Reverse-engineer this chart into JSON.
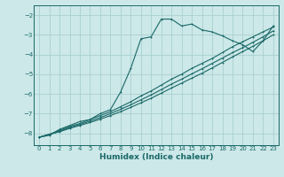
{
  "xlabel": "Humidex (Indice chaleur)",
  "bg_color": "#cce8e8",
  "grid_color": "#aad0d0",
  "line_color": "#1a6868",
  "xlim": [
    -0.5,
    23.5
  ],
  "ylim": [
    -8.6,
    -1.5
  ],
  "yticks": [
    -8,
    -7,
    -6,
    -5,
    -4,
    -3,
    -2
  ],
  "xticks": [
    0,
    1,
    2,
    3,
    4,
    5,
    6,
    7,
    8,
    9,
    10,
    11,
    12,
    13,
    14,
    15,
    16,
    17,
    18,
    19,
    20,
    21,
    22,
    23
  ],
  "series_jagged_x": [
    0,
    1,
    2,
    3,
    4,
    5,
    6,
    7,
    8,
    9,
    10,
    11,
    12,
    13,
    14,
    15,
    16,
    17,
    18,
    19,
    20,
    21,
    22,
    23
  ],
  "series_jagged_y": [
    -8.2,
    -8.1,
    -7.8,
    -7.6,
    -7.4,
    -7.3,
    -7.0,
    -6.8,
    -5.9,
    -4.7,
    -3.2,
    -3.1,
    -2.2,
    -2.2,
    -2.55,
    -2.45,
    -2.75,
    -2.85,
    -3.05,
    -3.3,
    -3.5,
    -3.85,
    -3.3,
    -2.55
  ],
  "series_lin1_x": [
    0,
    1,
    2,
    3,
    4,
    5,
    6,
    7,
    8,
    9,
    10,
    11,
    12,
    13,
    14,
    15,
    16,
    17,
    18,
    19,
    20,
    21,
    22,
    23
  ],
  "series_lin1_y": [
    -8.2,
    -8.05,
    -7.85,
    -7.65,
    -7.5,
    -7.3,
    -7.1,
    -6.9,
    -6.65,
    -6.4,
    -6.1,
    -5.85,
    -5.55,
    -5.25,
    -5.0,
    -4.7,
    -4.45,
    -4.2,
    -3.9,
    -3.6,
    -3.35,
    -3.1,
    -2.85,
    -2.6
  ],
  "series_lin2_x": [
    0,
    1,
    2,
    3,
    4,
    5,
    6,
    7,
    8,
    9,
    10,
    11,
    12,
    13,
    14,
    15,
    16,
    17,
    18,
    19,
    20,
    21,
    22,
    23
  ],
  "series_lin2_y": [
    -8.2,
    -8.05,
    -7.9,
    -7.7,
    -7.55,
    -7.38,
    -7.2,
    -7.0,
    -6.78,
    -6.55,
    -6.3,
    -6.05,
    -5.78,
    -5.5,
    -5.25,
    -4.98,
    -4.72,
    -4.45,
    -4.18,
    -3.9,
    -3.65,
    -3.38,
    -3.1,
    -2.8
  ],
  "series_lin3_x": [
    0,
    1,
    2,
    3,
    4,
    5,
    6,
    7,
    8,
    9,
    10,
    11,
    12,
    13,
    14,
    15,
    16,
    17,
    18,
    19,
    20,
    21,
    22,
    23
  ],
  "series_lin3_y": [
    -8.2,
    -8.05,
    -7.92,
    -7.75,
    -7.6,
    -7.45,
    -7.28,
    -7.1,
    -6.9,
    -6.68,
    -6.45,
    -6.22,
    -5.96,
    -5.7,
    -5.45,
    -5.2,
    -4.95,
    -4.68,
    -4.4,
    -4.12,
    -3.85,
    -3.58,
    -3.3,
    -3.0
  ]
}
